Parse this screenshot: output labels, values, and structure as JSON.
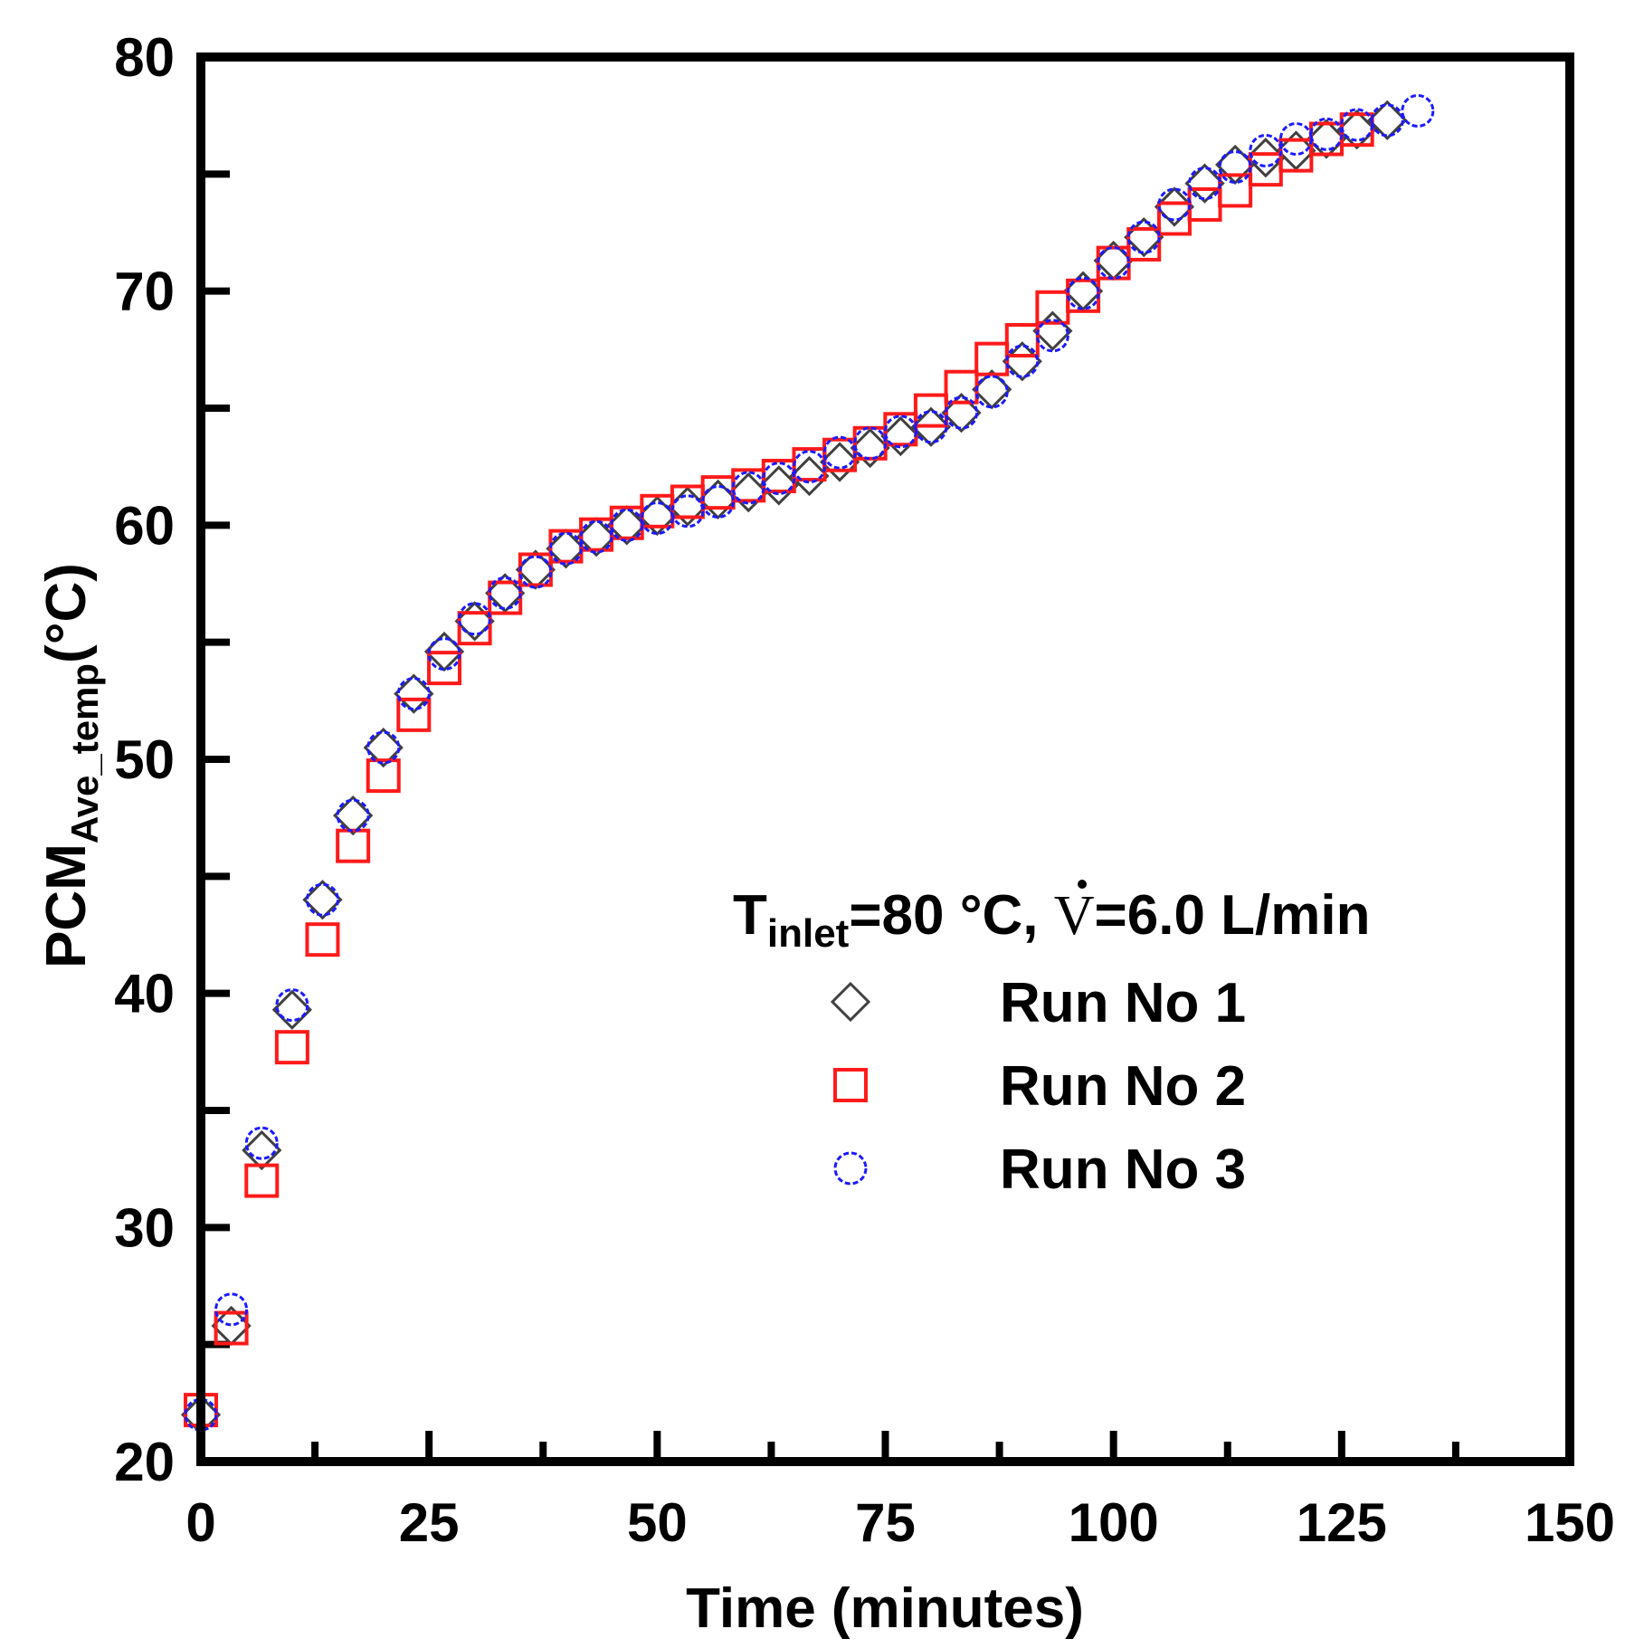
{
  "chart_data": {
    "type": "scatter",
    "xlabel": "Time (minutes)",
    "ylabel": {
      "main": "PCM",
      "sub": "Ave_temp",
      "unit": "(°C)"
    },
    "xlim": [
      0,
      150
    ],
    "ylim": [
      20,
      80
    ],
    "x_ticks": [
      0,
      25,
      50,
      75,
      100,
      125,
      150
    ],
    "y_ticks": [
      20,
      30,
      40,
      50,
      60,
      70,
      80
    ],
    "legend": {
      "placement": "center-right",
      "title": {
        "T": "T",
        "sub": "inlet",
        "temp": "=80 °C, ",
        "V": "V",
        "flow": "=6.0 L/min"
      }
    },
    "series": [
      {
        "name": "Run No 1",
        "marker": "diamond",
        "color": "#404040",
        "x": [
          0,
          3.33,
          6.67,
          10,
          13.33,
          16.67,
          20,
          23.33,
          26.67,
          30,
          33.33,
          36.67,
          40,
          43.33,
          46.67,
          50,
          53.33,
          56.67,
          60,
          63.33,
          66.67,
          70,
          73.33,
          76.67,
          80,
          83.33,
          86.67,
          90,
          93.33,
          96.67,
          100,
          103.33,
          106.67,
          110,
          113.33,
          116.67,
          120,
          123.33,
          126.67,
          130
        ],
        "y": [
          22.0,
          25.8,
          33.3,
          39.3,
          44.0,
          47.6,
          50.5,
          52.8,
          54.6,
          55.9,
          57.1,
          58.1,
          59.0,
          59.5,
          60.0,
          60.4,
          60.8,
          61.1,
          61.4,
          61.7,
          62.1,
          62.7,
          63.3,
          63.8,
          64.2,
          64.8,
          65.8,
          67.0,
          68.3,
          70.0,
          71.3,
          72.3,
          73.6,
          74.6,
          75.4,
          75.7,
          76.0,
          76.5,
          76.9,
          77.3
        ]
      },
      {
        "name": "Run No 2",
        "marker": "square",
        "color": "#ff1a1a",
        "x": [
          0,
          3.33,
          6.67,
          10,
          13.33,
          16.67,
          20,
          23.33,
          26.67,
          30,
          33.33,
          36.67,
          40,
          43.33,
          46.67,
          50,
          53.33,
          56.67,
          60,
          63.33,
          66.67,
          70,
          73.33,
          76.67,
          80,
          83.33,
          86.67,
          90,
          93.33,
          96.67,
          100,
          103.33,
          106.67,
          110,
          113.33,
          116.67,
          120,
          123.33,
          126.67
        ],
        "y": [
          22.2,
          25.7,
          32.0,
          37.7,
          42.3,
          46.3,
          49.3,
          51.9,
          53.9,
          55.6,
          56.9,
          58.1,
          59.1,
          59.6,
          60.1,
          60.6,
          61.0,
          61.4,
          61.7,
          62.1,
          62.6,
          63.0,
          63.5,
          64.1,
          64.9,
          65.9,
          67.1,
          67.9,
          69.3,
          69.8,
          71.2,
          72.0,
          73.1,
          73.7,
          74.3,
          75.2,
          75.8,
          76.5,
          76.9
        ]
      },
      {
        "name": "Run No 3",
        "marker": "circle",
        "color": "#1a1aff",
        "x": [
          0,
          3.33,
          6.67,
          10,
          13.33,
          16.67,
          20,
          23.33,
          26.67,
          30,
          33.33,
          36.67,
          40,
          43.33,
          46.67,
          50,
          53.33,
          56.67,
          60,
          63.33,
          66.67,
          70,
          73.33,
          76.67,
          80,
          83.33,
          86.67,
          90,
          93.33,
          96.67,
          100,
          103.33,
          106.67,
          110,
          113.33,
          116.67,
          120,
          123.33,
          126.67,
          130,
          133.33
        ],
        "y": [
          22.0,
          26.5,
          33.6,
          39.5,
          44.0,
          47.6,
          50.5,
          52.8,
          54.5,
          56.0,
          57.1,
          58.0,
          59.0,
          59.5,
          60.0,
          60.3,
          60.6,
          61.0,
          61.6,
          62.0,
          62.5,
          63.1,
          63.5,
          64.0,
          64.2,
          64.8,
          65.7,
          67.0,
          68.1,
          69.9,
          71.2,
          72.3,
          73.7,
          74.6,
          75.3,
          76.0,
          76.5,
          76.7,
          77.1,
          77.3,
          77.7
        ]
      }
    ]
  }
}
